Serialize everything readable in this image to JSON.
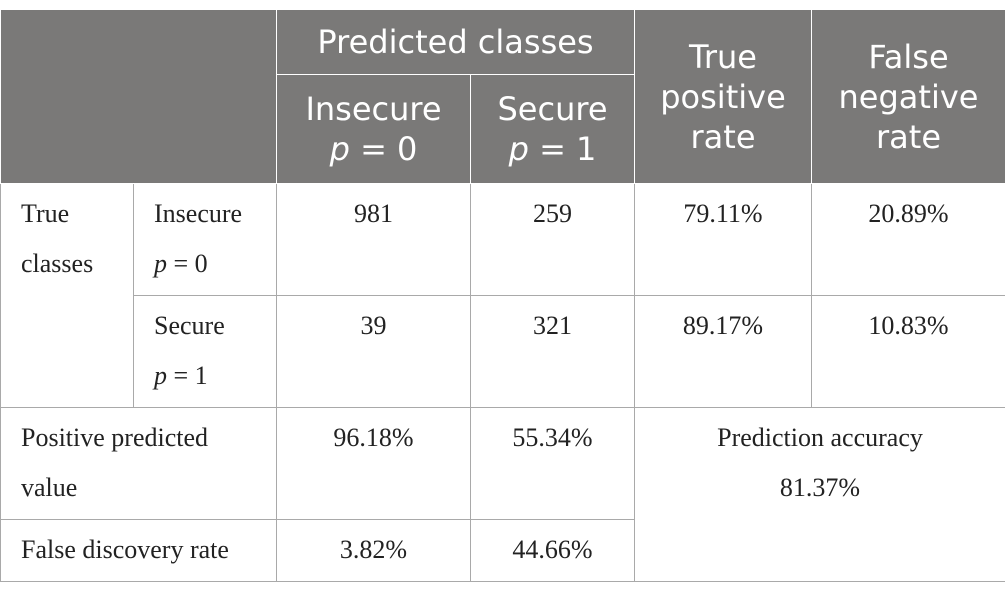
{
  "header": {
    "predicted_classes": "Predicted classes",
    "true_positive_rate": [
      "True",
      "positive",
      "rate"
    ],
    "false_negative_rate": [
      "False",
      "negative",
      "rate"
    ],
    "insecure_label": "Insecure",
    "insecure_p": "p",
    "insecure_eq": " = 0",
    "secure_label": "Secure",
    "secure_p": "p",
    "secure_eq": " = 1"
  },
  "rows": {
    "true_classes": [
      "True",
      "classes"
    ],
    "insecure": {
      "label": "Insecure",
      "p": "p",
      "eq": " = 0",
      "pred_insecure": "981",
      "pred_secure": "259",
      "tpr": "79.11%",
      "fnr": "20.89%"
    },
    "secure": {
      "label": "Secure",
      "p": "p",
      "eq": " = 1",
      "pred_insecure": "39",
      "pred_secure": "321",
      "tpr": "89.17%",
      "fnr": "10.83%"
    },
    "ppv": {
      "label": [
        "Positive predicted",
        "value"
      ],
      "insecure": "96.18%",
      "secure": "55.34%"
    },
    "fdr": {
      "label": "False discovery rate",
      "insecure": "3.82%",
      "secure": "44.66%"
    },
    "accuracy": {
      "label": "Prediction accuracy",
      "value": "81.37%"
    }
  }
}
